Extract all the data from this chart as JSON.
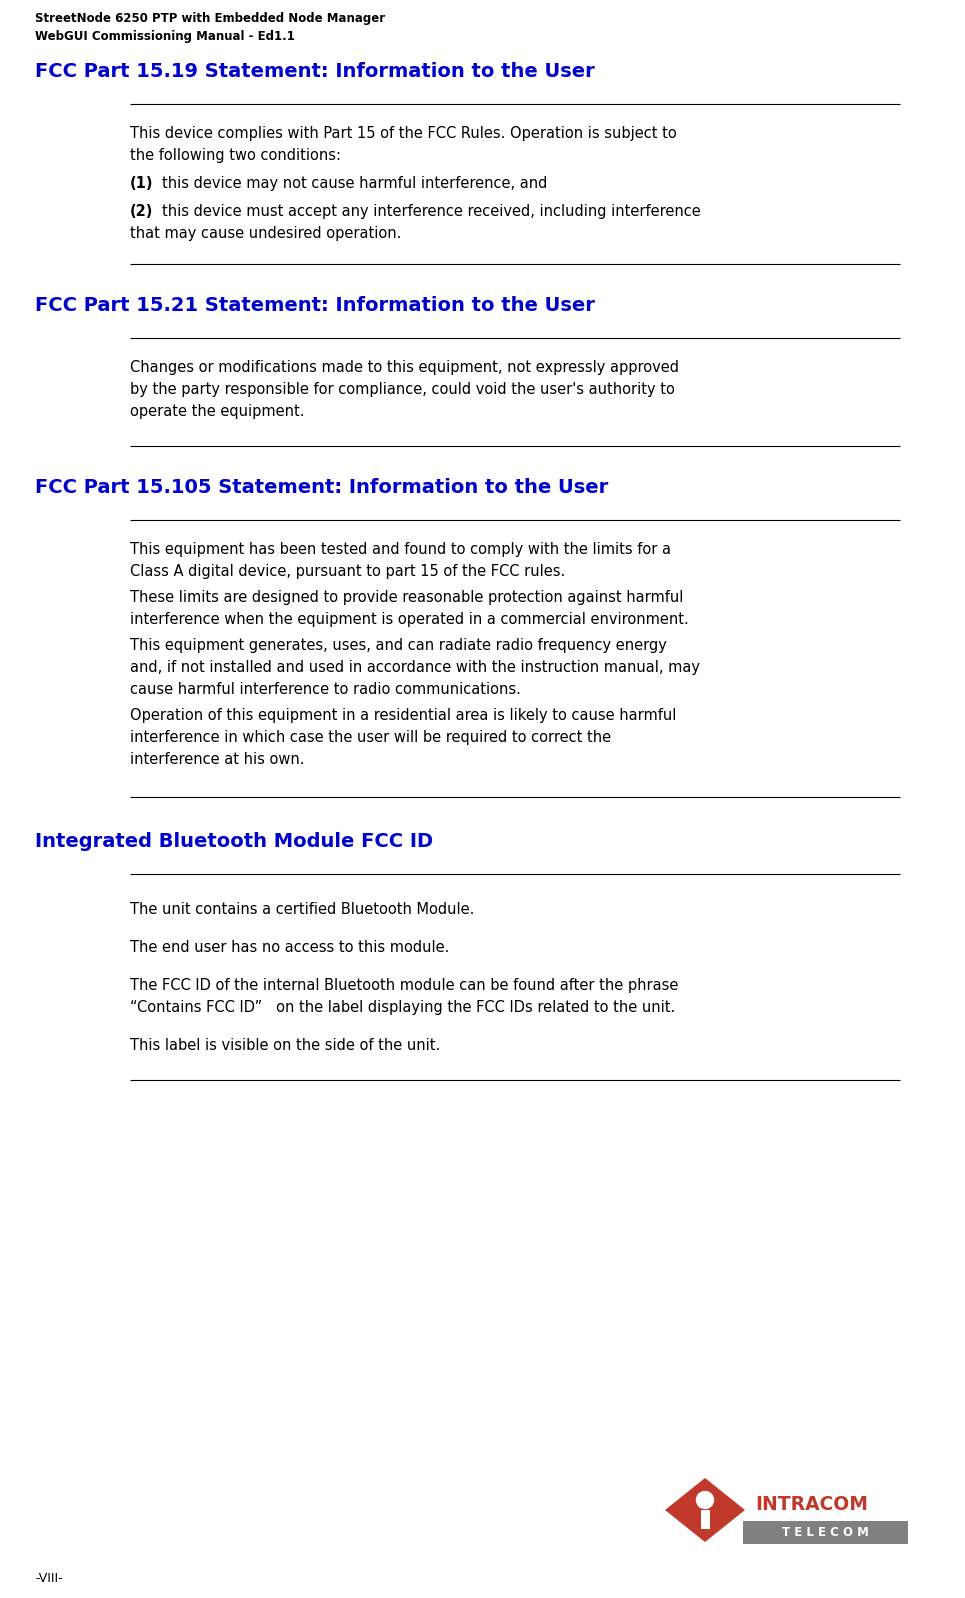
{
  "header_line1": "StreetNode 6250 PTP with Embedded Node Manager",
  "header_line2": "WebGUI Commissioning Manual - Ed1.1",
  "footer_text": "-VIII-",
  "bg_color": "#ffffff",
  "header_color": "#000000",
  "section_title_color": "#0000cc",
  "body_color": "#000000",
  "line_color": "#000000",
  "intracom_red": "#c0392b",
  "telecom_grey": "#808080",
  "sections": [
    {
      "title": "FCC Part 15.19 Statement: Information to the User"
    },
    {
      "title": "FCC Part 15.21 Statement: Information to the User"
    },
    {
      "title": "FCC Part 15.105 Statement: Information to the User"
    },
    {
      "title": "Integrated Bluetooth Module FCC ID"
    }
  ]
}
